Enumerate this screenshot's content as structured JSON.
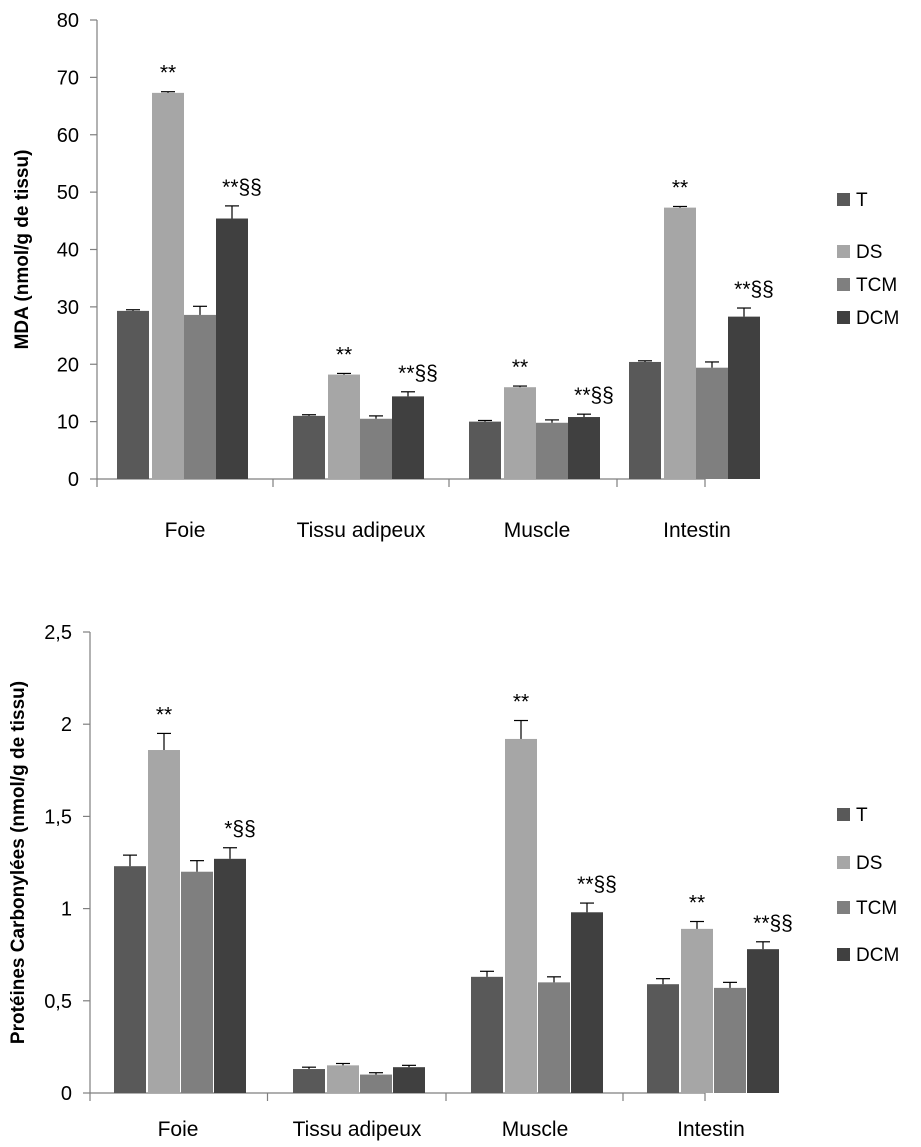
{
  "chart_data": [
    {
      "type": "bar",
      "title": "",
      "ylabel": "MDA (nmol/g de tissu)",
      "xlabel": "",
      "ylim": [
        0,
        80
      ],
      "yticks": [
        0,
        10,
        20,
        30,
        40,
        50,
        60,
        70,
        80
      ],
      "ytick_labels": [
        "0",
        "10",
        "20",
        "30",
        "40",
        "50",
        "60",
        "70",
        "80"
      ],
      "categories": [
        "Foie",
        "Tissu adipeux",
        "Muscle",
        "Intestin"
      ],
      "grid": false,
      "legend_position": "right",
      "series": [
        {
          "name": "T",
          "color": "#595959",
          "values": [
            29.3,
            11.0,
            10.0,
            20.4
          ],
          "errors": [
            0.2,
            0.2,
            0.2,
            0.2
          ],
          "annotations": [
            "",
            "",
            "",
            ""
          ]
        },
        {
          "name": "DS",
          "color": "#a6a6a6",
          "values": [
            67.3,
            18.2,
            16.0,
            47.3
          ],
          "errors": [
            0.2,
            0.2,
            0.2,
            0.2
          ],
          "annotations": [
            "**",
            "**",
            "**",
            "**"
          ]
        },
        {
          "name": "TCM",
          "color": "#7f7f7f",
          "values": [
            28.6,
            10.5,
            9.8,
            19.4
          ],
          "errors": [
            1.5,
            0.5,
            0.5,
            1.0
          ],
          "annotations": [
            "",
            "",
            "",
            ""
          ]
        },
        {
          "name": "DCM",
          "color": "#404040",
          "values": [
            45.4,
            14.4,
            10.8,
            28.3
          ],
          "errors": [
            2.2,
            0.8,
            0.5,
            1.5
          ],
          "annotations": [
            "**§§",
            "**§§",
            "**§§",
            "**§§"
          ]
        }
      ]
    },
    {
      "type": "bar",
      "title": "",
      "ylabel": "Protéines Carbonylées (nmol/g de tissu)",
      "xlabel": "",
      "ylim": [
        0,
        2.5
      ],
      "yticks": [
        0,
        0.5,
        1,
        1.5,
        2,
        2.5
      ],
      "ytick_labels": [
        "0",
        "0,5",
        "1",
        "1,5",
        "2",
        "2,5"
      ],
      "categories": [
        "Foie",
        "Tissu adipeux",
        "Muscle",
        "Intestin"
      ],
      "grid": false,
      "legend_position": "right",
      "series": [
        {
          "name": "T",
          "color": "#595959",
          "values": [
            1.23,
            0.13,
            0.63,
            0.59
          ],
          "errors": [
            0.06,
            0.01,
            0.03,
            0.03
          ],
          "annotations": [
            "",
            "",
            "",
            ""
          ]
        },
        {
          "name": "DS",
          "color": "#a6a6a6",
          "values": [
            1.86,
            0.15,
            1.92,
            0.89
          ],
          "errors": [
            0.09,
            0.01,
            0.1,
            0.04
          ],
          "annotations": [
            "**",
            "",
            "**",
            "**"
          ]
        },
        {
          "name": "TCM",
          "color": "#7f7f7f",
          "values": [
            1.2,
            0.1,
            0.6,
            0.57
          ],
          "errors": [
            0.06,
            0.01,
            0.03,
            0.03
          ],
          "annotations": [
            "",
            "",
            "",
            ""
          ]
        },
        {
          "name": "DCM",
          "color": "#404040",
          "values": [
            1.27,
            0.14,
            0.98,
            0.78
          ],
          "errors": [
            0.06,
            0.01,
            0.05,
            0.04
          ],
          "annotations": [
            "*§§",
            "",
            "**§§",
            "**§§"
          ]
        }
      ]
    }
  ]
}
